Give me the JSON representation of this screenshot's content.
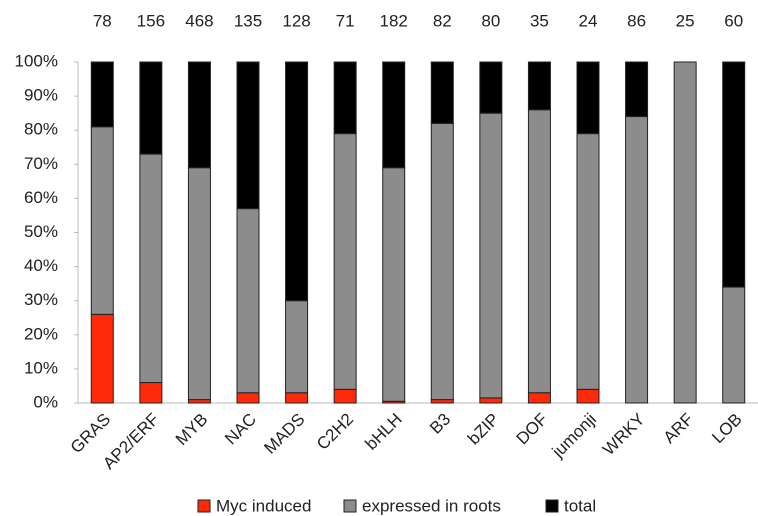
{
  "chart_data": {
    "type": "stacked_bar",
    "categories": [
      "GRAS",
      "AP2/ERF",
      "MYB",
      "NAC",
      "MADS",
      "C2H2",
      "bHLH",
      "B3",
      "bZIP",
      "DOF",
      "jumonji",
      "WRKY",
      "ARF",
      "LOB"
    ],
    "top_labels": [
      "78",
      "156",
      "468",
      "135",
      "128",
      "71",
      "182",
      "82",
      "80",
      "35",
      "24",
      "86",
      "25",
      "60"
    ],
    "series": [
      {
        "name": "Myc induced",
        "color": "#ff2a0a",
        "values": [
          26,
          6,
          1,
          3,
          3,
          4,
          0.5,
          1,
          1.5,
          3,
          4,
          0,
          0,
          0
        ]
      },
      {
        "name": "expressed in roots",
        "color": "#8c8c8c",
        "values": [
          55,
          67,
          68,
          54,
          27,
          75,
          68.5,
          81,
          83.5,
          83,
          75,
          84,
          100,
          34
        ]
      },
      {
        "name": "total",
        "color": "#000000",
        "values": [
          19,
          27,
          31,
          43,
          70,
          21,
          31,
          18,
          15,
          14,
          21,
          16,
          0,
          66
        ]
      }
    ],
    "ylim": [
      0,
      100
    ],
    "yticks": [
      {
        "value": 0,
        "label": "0%"
      },
      {
        "value": 10,
        "label": "10%"
      },
      {
        "value": 20,
        "label": "20%"
      },
      {
        "value": 30,
        "label": "30%"
      },
      {
        "value": 40,
        "label": "40%"
      },
      {
        "value": 50,
        "label": "50%"
      },
      {
        "value": 60,
        "label": "60%"
      },
      {
        "value": 70,
        "label": "70%"
      },
      {
        "value": 80,
        "label": "80%"
      },
      {
        "value": 90,
        "label": "90%"
      },
      {
        "value": 100,
        "label": "100%"
      }
    ],
    "legend": "bottom"
  }
}
